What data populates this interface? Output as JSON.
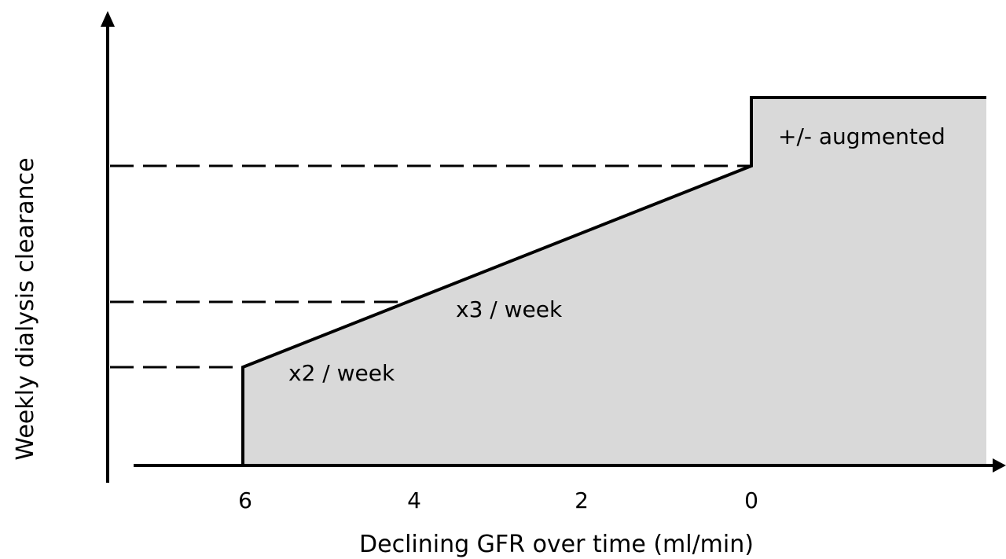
{
  "x_axis": {
    "label": "Declining GFR over time (ml/min)",
    "ticks": [
      "6",
      "4",
      "2",
      "0"
    ]
  },
  "y_axis": {
    "label": "Weekly dialysis clearance"
  },
  "regions": {
    "twice": "x2 / week",
    "thrice": "x3 / week",
    "augmented": "+/- augmented"
  },
  "colors": {
    "fill": "#d9d9d9",
    "line": "#000000"
  }
}
